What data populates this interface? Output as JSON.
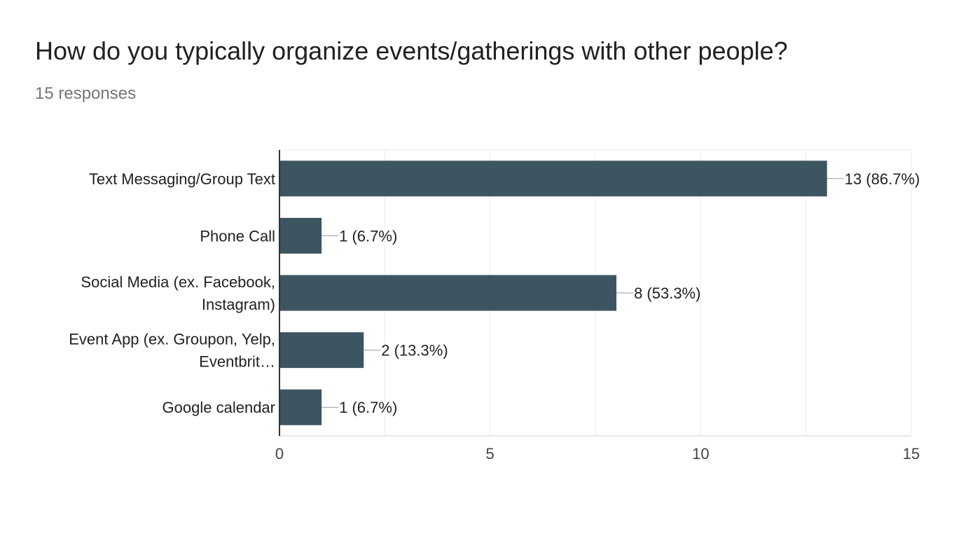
{
  "question": {
    "title": "How do you typically organize events/gatherings with other people?",
    "responses": "15 responses"
  },
  "chart_data": {
    "type": "bar",
    "orientation": "horizontal",
    "categories": [
      [
        "Text Messaging/Group Text"
      ],
      [
        "Phone Call"
      ],
      [
        "Social Media (ex. Facebook,",
        "Instagram)"
      ],
      [
        "Event App (ex. Groupon, Yelp,",
        "Eventbrit…"
      ],
      [
        "Google calendar"
      ]
    ],
    "values": [
      13,
      1,
      8,
      2,
      1
    ],
    "data_labels": [
      "13 (86.7%)",
      "1 (6.7%)",
      "8 (53.3%)",
      "2 (13.3%)",
      "1 (6.7%)"
    ],
    "xlim": [
      0,
      15
    ],
    "xticks": [
      "0",
      "5",
      "10",
      "15"
    ],
    "grid": true,
    "bar_color": "#3d5561"
  }
}
